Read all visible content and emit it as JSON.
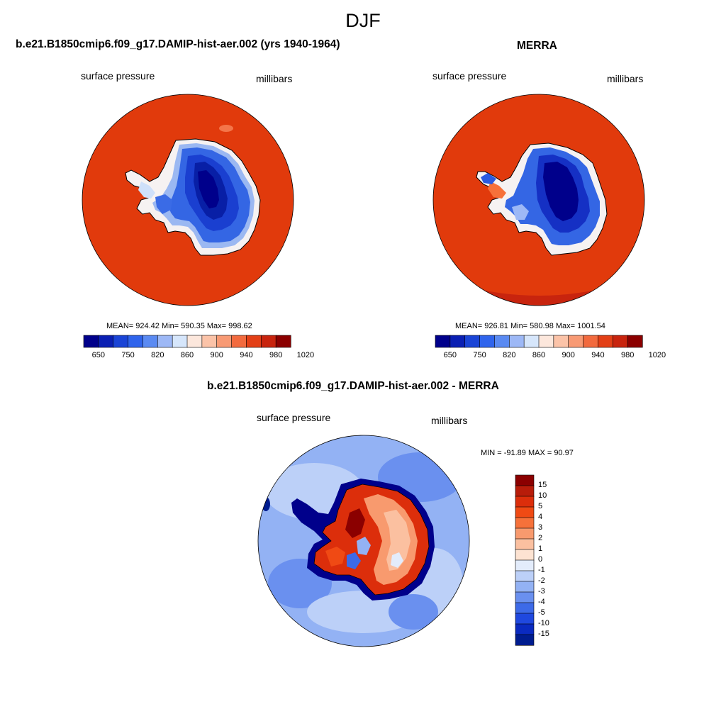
{
  "page": {
    "season": "DJF"
  },
  "panels": {
    "model": {
      "title": "b.e21.B1850cmip6.f09_g17.DAMIP-hist-aer.002 (yrs 1940-1964)",
      "variable": "surface pressure",
      "units": "millibars",
      "stats": "MEAN= 924.42  Min= 590.35  Max= 998.62"
    },
    "obs": {
      "title": "MERRA",
      "variable": "surface pressure",
      "units": "millibars",
      "stats": "MEAN= 926.81  Min= 580.98  Max= 1001.54"
    },
    "diff": {
      "title": "b.e21.B1850cmip6.f09_g17.DAMIP-hist-aer.002 - MERRA",
      "variable": "surface pressure",
      "units": "millibars",
      "stats": "MIN = -91.89 MAX =  90.97"
    }
  },
  "colorbars": {
    "absolute": {
      "colors": [
        "#00008b",
        "#0a1fb3",
        "#1a44d6",
        "#2f64ec",
        "#5a8af2",
        "#9db8f6",
        "#d6e6fb",
        "#fce7dc",
        "#fbc3a8",
        "#f89a74",
        "#f26a3e",
        "#e33f16",
        "#c8240e",
        "#8b0000"
      ],
      "tick_labels": [
        "650",
        "750",
        "820",
        "860",
        "900",
        "940",
        "980",
        "1020"
      ]
    },
    "difference": {
      "colors": [
        "#8b0000",
        "#b81c0a",
        "#dc2e0b",
        "#f04a14",
        "#f6713a",
        "#f89a6e",
        "#fbc0a0",
        "#fde3d2",
        "#e3ecfb",
        "#bcd0f8",
        "#93b2f4",
        "#6a90ef",
        "#3d6ae8",
        "#1f48df",
        "#0a2ac0",
        "#001c8f"
      ],
      "tick_labels": [
        "15",
        "10",
        "5",
        "4",
        "3",
        "2",
        "1",
        "0",
        "-1",
        "-2",
        "-3",
        "-4",
        "-5",
        "-10",
        "-15"
      ]
    }
  }
}
